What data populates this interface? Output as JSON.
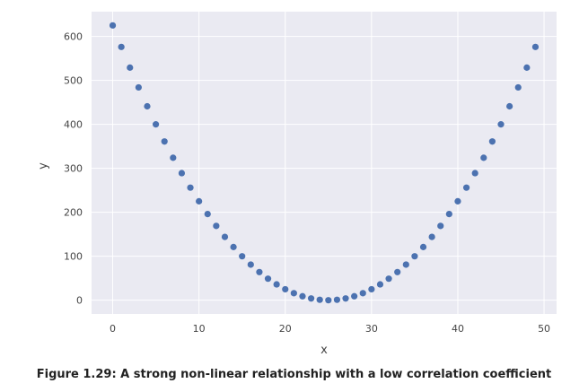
{
  "chart_data": {
    "type": "scatter",
    "xlabel": "x",
    "ylabel": "y",
    "xlim": [
      -2.45,
      51.45
    ],
    "ylim": [
      -31.25,
      656.25
    ],
    "xticks": [
      0,
      10,
      20,
      30,
      40,
      50
    ],
    "yticks": [
      0,
      100,
      200,
      300,
      400,
      500,
      600
    ],
    "grid": true,
    "legend": "none",
    "colors": {
      "background": "#EAEAF2",
      "point": "#4C72B0",
      "grid": "#FFFFFF"
    },
    "series": [
      {
        "x": [
          0,
          1,
          2,
          3,
          4,
          5,
          6,
          7,
          8,
          9,
          10,
          11,
          12,
          13,
          14,
          15,
          16,
          17,
          18,
          19,
          20,
          21,
          22,
          23,
          24,
          25,
          26,
          27,
          28,
          29,
          30,
          31,
          32,
          33,
          34,
          35,
          36,
          37,
          38,
          39,
          40,
          41,
          42,
          43,
          44,
          45,
          46,
          47,
          48,
          49
        ],
        "y": [
          625,
          576,
          529,
          484,
          441,
          400,
          361,
          324,
          289,
          256,
          225,
          196,
          169,
          144,
          121,
          100,
          81,
          64,
          49,
          36,
          25,
          16,
          9,
          4,
          1,
          0,
          1,
          4,
          9,
          16,
          25,
          36,
          49,
          64,
          81,
          100,
          121,
          144,
          169,
          196,
          225,
          256,
          289,
          324,
          361,
          400,
          441,
          484,
          529,
          576
        ]
      }
    ]
  },
  "caption": "Figure 1.29: A strong non-linear relationship with a low correlation coefficient"
}
